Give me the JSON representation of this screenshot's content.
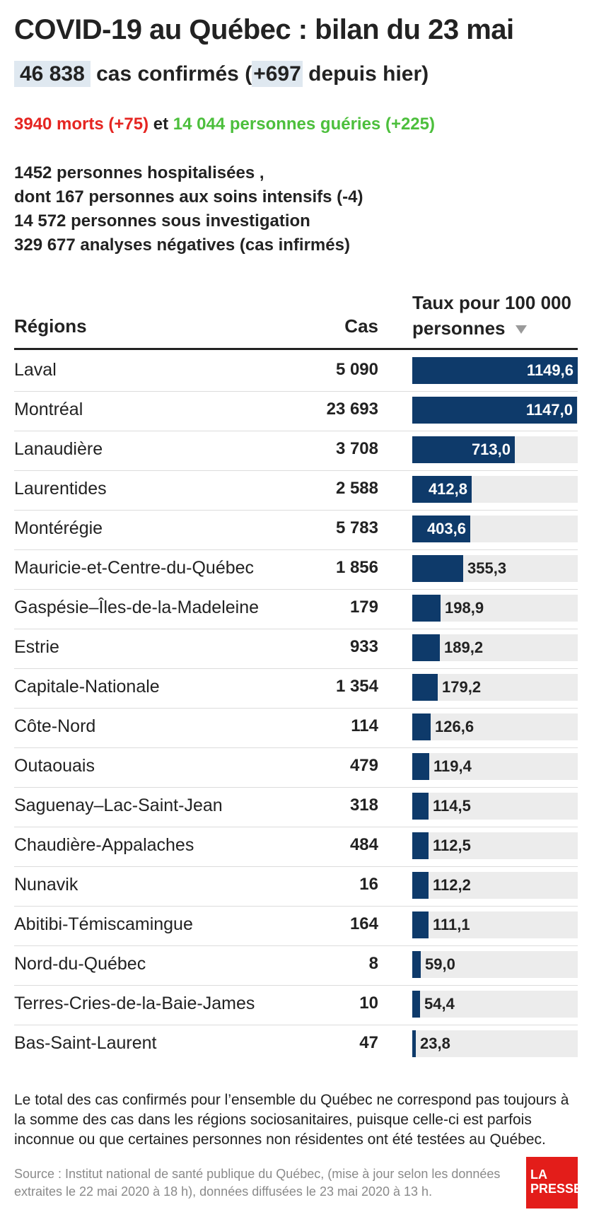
{
  "header": {
    "title": "COVID-19 au Québec : bilan du 23 mai",
    "confirmed_value": "46 838",
    "confirmed_text": " cas confirmés (",
    "confirmed_delta": "+697",
    "confirmed_suffix": " depuis hier)",
    "deaths": "3940 morts (+75)",
    "and": " et ",
    "recovered": "14 044 personnes guéries (+225)"
  },
  "stats": {
    "line1": "1452 personnes hospitalisées ,",
    "line2": "dont 167 personnes aux soins intensifs (-4)",
    "line3": "14 572 personnes sous investigation",
    "line4": "329 677 analyses négatives (cas infirmés)"
  },
  "table_header": {
    "regions": "Régions",
    "cases": "Cas",
    "rate_line1": "Taux pour 100 000",
    "rate_line2": "personnes",
    "sort_icon": "sort-down-triangle-icon"
  },
  "colors": {
    "bar": "#0e3a6a",
    "track": "#ececec",
    "deaths": "#e52521",
    "recovered": "#4cbf3c",
    "highlight": "#dfe8f0",
    "logo": "#e31d1a"
  },
  "chart_data": {
    "type": "table",
    "xlim": [
      0,
      1149.6
    ],
    "columns": [
      "Régions",
      "Cas",
      "Taux pour 100 000 personnes"
    ],
    "rows": [
      {
        "region": "Laval",
        "cases": "5 090",
        "rate": 1149.6,
        "rate_label": "1149,6"
      },
      {
        "region": "Montréal",
        "cases": "23 693",
        "rate": 1147.0,
        "rate_label": "1147,0"
      },
      {
        "region": "Lanaudière",
        "cases": "3 708",
        "rate": 713.0,
        "rate_label": "713,0"
      },
      {
        "region": "Laurentides",
        "cases": "2 588",
        "rate": 412.8,
        "rate_label": "412,8"
      },
      {
        "region": "Montérégie",
        "cases": "5 783",
        "rate": 403.6,
        "rate_label": "403,6"
      },
      {
        "region": "Mauricie-et-Centre-du-Québec",
        "cases": "1 856",
        "rate": 355.3,
        "rate_label": "355,3"
      },
      {
        "region": "Gaspésie–Îles-de-la-Madeleine",
        "cases": "179",
        "rate": 198.9,
        "rate_label": "198,9"
      },
      {
        "region": "Estrie",
        "cases": "933",
        "rate": 189.2,
        "rate_label": "189,2"
      },
      {
        "region": "Capitale-Nationale",
        "cases": "1 354",
        "rate": 179.2,
        "rate_label": "179,2"
      },
      {
        "region": "Côte-Nord",
        "cases": "114",
        "rate": 126.6,
        "rate_label": "126,6"
      },
      {
        "region": "Outaouais",
        "cases": "479",
        "rate": 119.4,
        "rate_label": "119,4"
      },
      {
        "region": "Saguenay–Lac-Saint-Jean",
        "cases": "318",
        "rate": 114.5,
        "rate_label": "114,5"
      },
      {
        "region": "Chaudière-Appalaches",
        "cases": "484",
        "rate": 112.5,
        "rate_label": "112,5"
      },
      {
        "region": "Nunavik",
        "cases": "16",
        "rate": 112.2,
        "rate_label": "112,2"
      },
      {
        "region": "Abitibi-Témiscamingue",
        "cases": "164",
        "rate": 111.1,
        "rate_label": "111,1"
      },
      {
        "region": "Nord-du-Québec",
        "cases": "8",
        "rate": 59.0,
        "rate_label": "59,0"
      },
      {
        "region": "Terres-Cries-de-la-Baie-James",
        "cases": "10",
        "rate": 54.4,
        "rate_label": "54,4"
      },
      {
        "region": "Bas-Saint-Laurent",
        "cases": "47",
        "rate": 23.8,
        "rate_label": "23,8"
      }
    ]
  },
  "footer": {
    "note": "Le total des cas confirmés pour l’ensemble du Québec ne correspond pas toujours à la somme des cas dans les régions sociosanitaires, puisque celle-ci est parfois inconnue ou que certaines personnes non résidentes ont été testées au Québec.",
    "source": "Source : Institut national de santé publique du Québec, (mise à jour selon les données extraites le 22 mai 2020 à 18 h), données diffusées le 23 mai 2020 à 13 h.",
    "logo_line1": "LA",
    "logo_line2": "PRESSE"
  }
}
